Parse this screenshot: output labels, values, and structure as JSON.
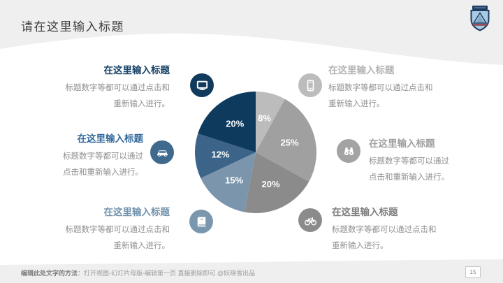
{
  "slide": {
    "title": "请在这里输入标题",
    "page_number": "15",
    "footer": {
      "label": "编辑此处文字的方法",
      "text": "：打开视图-幻灯片母版-编辑第一页 直接删除即可 @妖晓雪出品"
    }
  },
  "theme": {
    "bg_band": "#efefef",
    "title_color": "#3f3f3f",
    "body_text": "#8f8f8f"
  },
  "callouts": [
    {
      "id": "top-left",
      "title": "在这里输入标题",
      "desc": "标题数字等都可以通过点击和重新输入进行。",
      "icon": "monitor-icon",
      "accent": "#123a5c",
      "title_color": "#1a4469"
    },
    {
      "id": "top-right",
      "title": "在这里输入标题",
      "desc": "标题数字等都可以通过点击和重新输入进行。",
      "icon": "smartphone-icon",
      "accent": "#bcbcbc",
      "title_color": "#b5b5b5"
    },
    {
      "id": "mid-left",
      "title": "在这里输入标题",
      "desc": "标题数字等都可以通过点击和重新输入进行。",
      "icon": "car-icon",
      "accent": "#40698e",
      "title_color": "#32689b"
    },
    {
      "id": "mid-right",
      "title": "在这里输入标题",
      "desc": "标题数字等都可以通过点击和重新输入进行。",
      "icon": "binoculars-icon",
      "accent": "#a3a3a3",
      "title_color": "#9e9e9e"
    },
    {
      "id": "bottom-left",
      "title": "在这里输入标题",
      "desc": "标题数字等都可以通过点击和重新输入进行。",
      "icon": "book-icon",
      "accent": "#7b97ae",
      "title_color": "#7494ad"
    },
    {
      "id": "bottom-right",
      "title": "在这里输入标题",
      "desc": "标题数字等都可以通过点击和重新输入进行。",
      "icon": "bicycle-icon",
      "accent": "#8b8b8b",
      "title_color": "#7f7f7f"
    }
  ],
  "chart_data": {
    "type": "pie",
    "labels": [
      "8%",
      "25%",
      "20%",
      "15%",
      "12%",
      "20%"
    ],
    "values": [
      8,
      25,
      20,
      15,
      12,
      20
    ],
    "colors": [
      "#bcbcbc",
      "#a0a0a0",
      "#8b8b8b",
      "#7b95ac",
      "#3c6488",
      "#0e3a5e"
    ],
    "start_angle_deg": 0,
    "direction": "clockwise",
    "label_color": "#ffffff",
    "legend": "none",
    "title": ""
  }
}
